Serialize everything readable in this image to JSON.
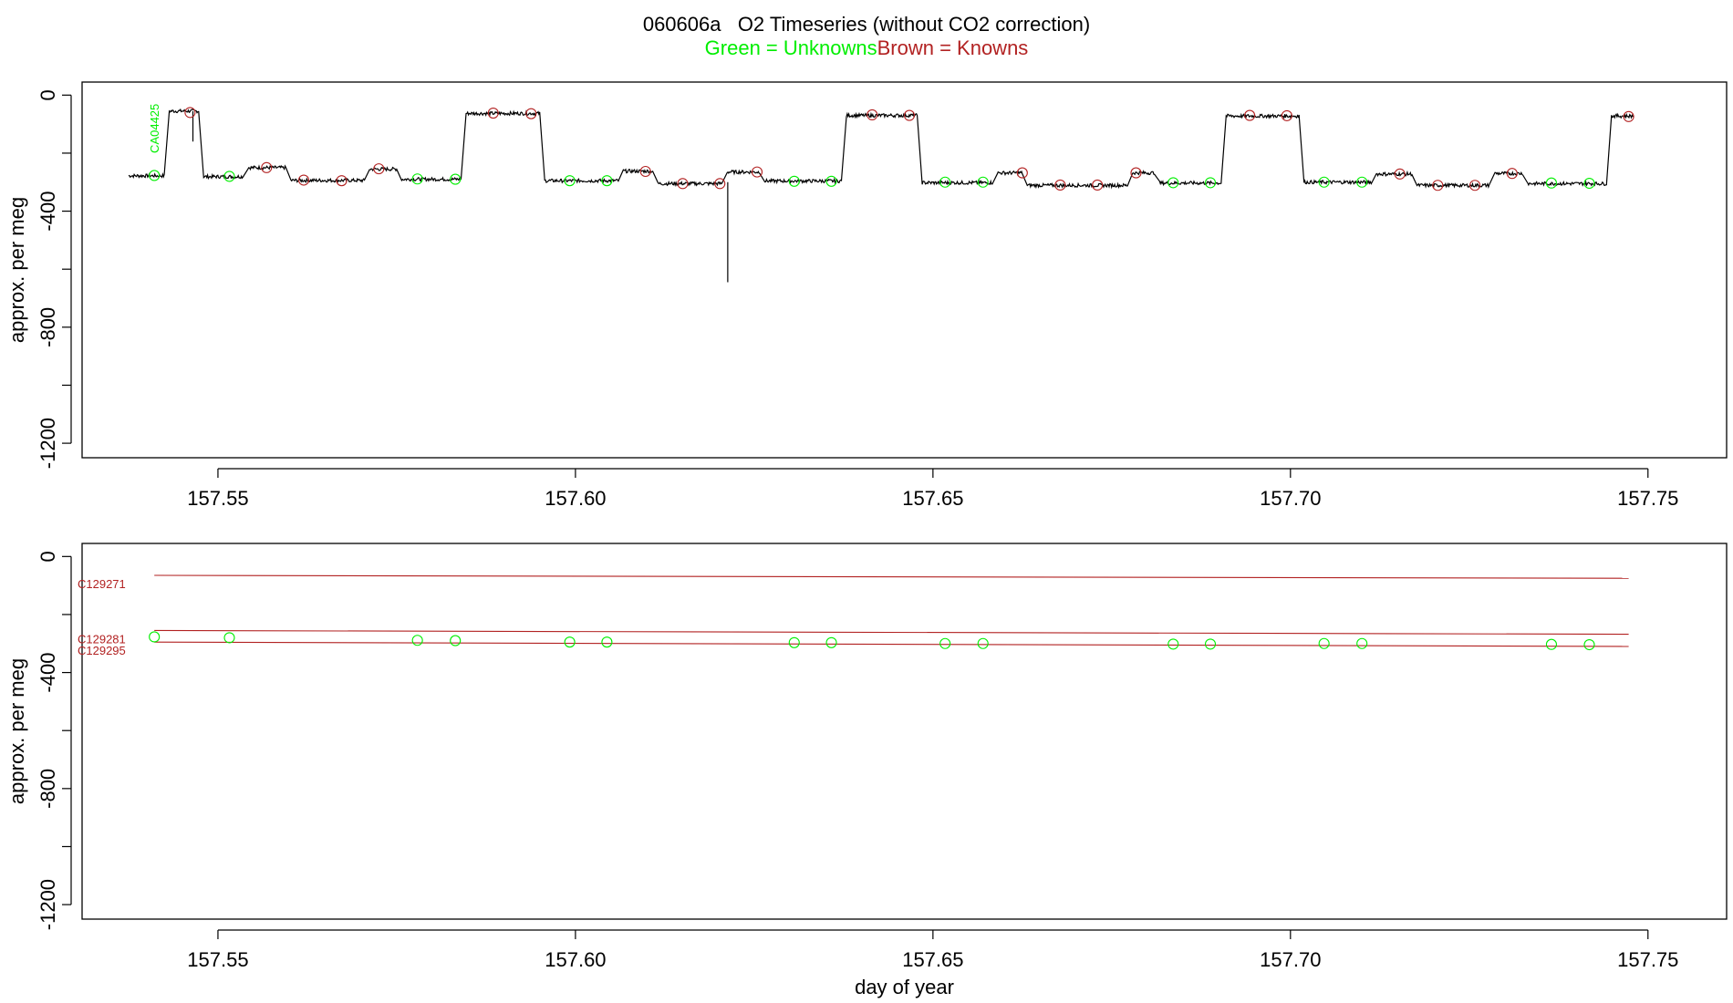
{
  "title": "060606a   O2 Timeseries (without CO2 correction)",
  "legend": {
    "unknowns": "Green = Unknowns",
    "knowns": "Brown = Knowns"
  },
  "colors": {
    "unknown": "#00ee00",
    "known": "#b22222",
    "line": "#000000"
  },
  "chart_data": [
    {
      "type": "line",
      "panel": "top",
      "ylabel": "approx. per meg",
      "xlabel": "",
      "xlim": [
        157.531,
        157.761
      ],
      "ylim": [
        -1250,
        45
      ],
      "xticks": [
        "157.55",
        "157.60",
        "157.65",
        "157.70",
        "157.75"
      ],
      "yticks": [
        "0",
        "-400",
        "-800",
        "-1200"
      ],
      "grid": false,
      "annotation": "CA04425",
      "trace_segments": [
        {
          "x": [
            157.5375,
            157.5425
          ],
          "y": -278
        },
        {
          "x": [
            157.5432,
            157.5473
          ],
          "y": -55
        },
        {
          "x": [
            157.548,
            157.5535
          ],
          "y": -281
        },
        {
          "x": [
            157.5542,
            157.5595
          ],
          "y": -250
        },
        {
          "x": [
            157.5602,
            157.5705
          ],
          "y": -294
        },
        {
          "x": [
            157.5712,
            157.575
          ],
          "y": -255
        },
        {
          "x": [
            157.5757,
            157.584
          ],
          "y": -290
        },
        {
          "x": [
            157.5847,
            157.595
          ],
          "y": -63
        },
        {
          "x": [
            157.5957,
            157.606
          ],
          "y": -295
        },
        {
          "x": [
            157.6067,
            157.6108
          ],
          "y": -262
        },
        {
          "x": [
            157.6115,
            157.6205
          ],
          "y": -305
        },
        {
          "x": [
            157.6212,
            157.6258
          ],
          "y": -265
        },
        {
          "x": [
            157.6265,
            157.6372
          ],
          "y": -296
        },
        {
          "x": [
            157.6379,
            157.6478
          ],
          "y": -70
        },
        {
          "x": [
            157.6485,
            157.6583
          ],
          "y": -302
        },
        {
          "x": [
            157.659,
            157.6625
          ],
          "y": -268
        },
        {
          "x": [
            157.6632,
            157.6772
          ],
          "y": -311
        },
        {
          "x": [
            157.6779,
            157.681
          ],
          "y": -268
        },
        {
          "x": [
            157.6817,
            157.6903
          ],
          "y": -303
        },
        {
          "x": [
            157.691,
            157.7012
          ],
          "y": -72
        },
        {
          "x": [
            157.7019,
            157.7113
          ],
          "y": -300
        },
        {
          "x": [
            157.712,
            157.717
          ],
          "y": -272
        },
        {
          "x": [
            157.7177,
            157.7278
          ],
          "y": -311
        },
        {
          "x": [
            157.7285,
            157.7325
          ],
          "y": -270
        },
        {
          "x": [
            157.7332,
            157.7442
          ],
          "y": -305
        },
        {
          "x": [
            157.7449,
            157.748
          ],
          "y": -72
        }
      ],
      "spikes": [
        {
          "x": 157.5465,
          "y_from": -55,
          "y_to": -160
        },
        {
          "x": 157.6213,
          "y_from": -300,
          "y_to": -645
        }
      ],
      "unknowns": [
        {
          "x": 157.5411,
          "y": -277
        },
        {
          "x": 157.5516,
          "y": -280
        },
        {
          "x": 157.5779,
          "y": -289
        },
        {
          "x": 157.5832,
          "y": -290
        },
        {
          "x": 157.5992,
          "y": -295
        },
        {
          "x": 157.6044,
          "y": -295
        },
        {
          "x": 157.6306,
          "y": -297
        },
        {
          "x": 157.6358,
          "y": -297
        },
        {
          "x": 157.6517,
          "y": -300
        },
        {
          "x": 157.657,
          "y": -300
        },
        {
          "x": 157.6836,
          "y": -302
        },
        {
          "x": 157.6888,
          "y": -302
        },
        {
          "x": 157.7047,
          "y": -300
        },
        {
          "x": 157.71,
          "y": -300
        },
        {
          "x": 157.7365,
          "y": -303
        },
        {
          "x": 157.7418,
          "y": -304
        }
      ],
      "knowns": [
        {
          "x": 157.5461,
          "y": -60
        },
        {
          "x": 157.5568,
          "y": -250
        },
        {
          "x": 157.562,
          "y": -293
        },
        {
          "x": 157.5673,
          "y": -295
        },
        {
          "x": 157.5725,
          "y": -254
        },
        {
          "x": 157.5885,
          "y": -62
        },
        {
          "x": 157.5938,
          "y": -64
        },
        {
          "x": 157.6098,
          "y": -263
        },
        {
          "x": 157.615,
          "y": -305
        },
        {
          "x": 157.6202,
          "y": -305
        },
        {
          "x": 157.6254,
          "y": -265
        },
        {
          "x": 157.6415,
          "y": -68
        },
        {
          "x": 157.6467,
          "y": -70
        },
        {
          "x": 157.6625,
          "y": -268
        },
        {
          "x": 157.6678,
          "y": -310
        },
        {
          "x": 157.673,
          "y": -310
        },
        {
          "x": 157.6784,
          "y": -268
        },
        {
          "x": 157.6943,
          "y": -70
        },
        {
          "x": 157.6995,
          "y": -71
        },
        {
          "x": 157.7153,
          "y": -272
        },
        {
          "x": 157.7206,
          "y": -311
        },
        {
          "x": 157.7258,
          "y": -311
        },
        {
          "x": 157.731,
          "y": -270
        },
        {
          "x": 157.7473,
          "y": -74
        }
      ]
    },
    {
      "type": "scatter",
      "panel": "bottom",
      "ylabel": "approx. per meg",
      "xlabel": "day of year",
      "xlim": [
        157.531,
        157.761
      ],
      "ylim": [
        -1250,
        45
      ],
      "xticks": [
        "157.55",
        "157.60",
        "157.65",
        "157.70",
        "157.75"
      ],
      "yticks": [
        "0",
        "-400",
        "-800",
        "-1200"
      ],
      "grid": false,
      "known_lines": [
        {
          "label": "C129271",
          "x": [
            157.5411,
            157.7473
          ],
          "y": [
            -65,
            -75
          ]
        },
        {
          "label": "C129281",
          "x": [
            157.5411,
            157.7473
          ],
          "y": [
            -255,
            -268
          ]
        },
        {
          "label": "C129295",
          "x": [
            157.5411,
            157.7473
          ],
          "y": [
            -295,
            -310
          ]
        }
      ],
      "unknowns": [
        {
          "x": 157.5411,
          "y": -277
        },
        {
          "x": 157.5516,
          "y": -280
        },
        {
          "x": 157.5779,
          "y": -289
        },
        {
          "x": 157.5832,
          "y": -290
        },
        {
          "x": 157.5992,
          "y": -295
        },
        {
          "x": 157.6044,
          "y": -295
        },
        {
          "x": 157.6306,
          "y": -297
        },
        {
          "x": 157.6358,
          "y": -297
        },
        {
          "x": 157.6517,
          "y": -300
        },
        {
          "x": 157.657,
          "y": -300
        },
        {
          "x": 157.6836,
          "y": -302
        },
        {
          "x": 157.6888,
          "y": -302
        },
        {
          "x": 157.7047,
          "y": -300
        },
        {
          "x": 157.71,
          "y": -300
        },
        {
          "x": 157.7365,
          "y": -303
        },
        {
          "x": 157.7418,
          "y": -304
        }
      ]
    }
  ]
}
